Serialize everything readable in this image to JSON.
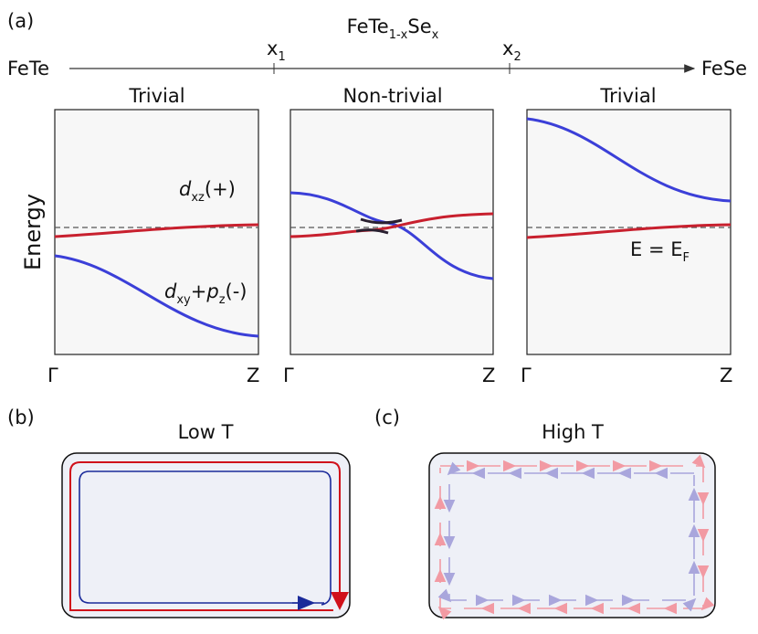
{
  "panel_a": {
    "label": "(a)",
    "left_end": "FeTe",
    "right_end": "FeSe",
    "formula": [
      "FeTe",
      "1-x",
      "Se",
      "x"
    ],
    "x1": [
      "x",
      "1"
    ],
    "x2": [
      "x",
      "2"
    ],
    "phases": [
      "Trivial",
      "Non-trivial",
      "Trivial"
    ],
    "y_axis": "Energy",
    "k_start": "Γ",
    "k_end": "Z",
    "band_labels": {
      "dxz": [
        "d",
        "xz",
        "(+)"
      ],
      "dxy": [
        "d",
        "xy",
        "+",
        "p",
        "z",
        "(-)"
      ],
      "fermi": [
        "E = E",
        "F"
      ]
    }
  },
  "panel_b": {
    "label": "(b)",
    "title": "Low T"
  },
  "panel_c": {
    "label": "(c)",
    "title": "High T"
  }
}
